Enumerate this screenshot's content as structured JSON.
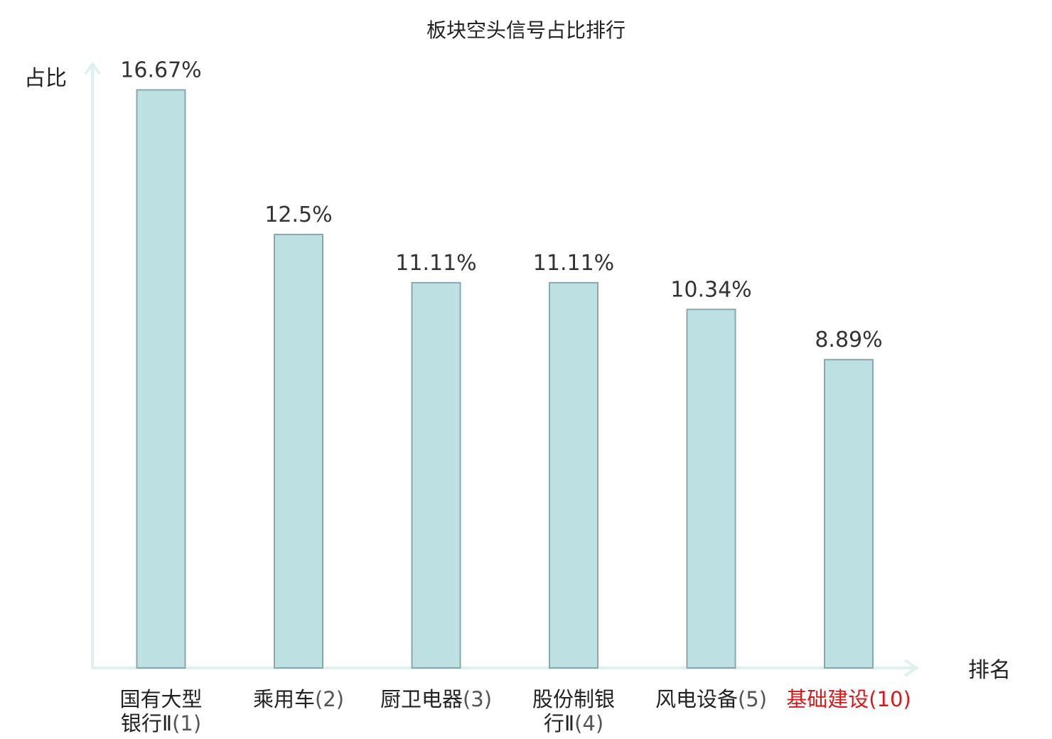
{
  "chart_data": {
    "type": "bar",
    "title": "板块空头信号占比排行",
    "ylabel": "占比",
    "xlabel": "排名",
    "ylim": [
      0,
      17.5
    ],
    "grid": false,
    "categories": [
      {
        "lines": [
          "国有大型",
          "银行Ⅱ"
        ],
        "rank": "(1)",
        "highlight": false
      },
      {
        "lines": [
          "乘用车"
        ],
        "rank": "(2)",
        "highlight": false
      },
      {
        "lines": [
          "厨卫电器"
        ],
        "rank": "(3)",
        "highlight": false
      },
      {
        "lines": [
          "股份制银",
          "行Ⅱ"
        ],
        "rank": "(4)",
        "highlight": false
      },
      {
        "lines": [
          "风电设备"
        ],
        "rank": "(5)",
        "highlight": false
      },
      {
        "lines": [
          "基础建设"
        ],
        "rank": "(10)",
        "highlight": true
      }
    ],
    "values": [
      16.67,
      12.5,
      11.11,
      11.11,
      10.34,
      8.89
    ],
    "value_labels": [
      "16.67%",
      "12.5%",
      "11.11%",
      "11.11%",
      "10.34%",
      "8.89%"
    ],
    "colors": {
      "bar_fill": "#bde0e2",
      "bar_stroke": "#8aa8aa",
      "axis": "#dff1ef",
      "highlight": "#d7191c"
    }
  }
}
